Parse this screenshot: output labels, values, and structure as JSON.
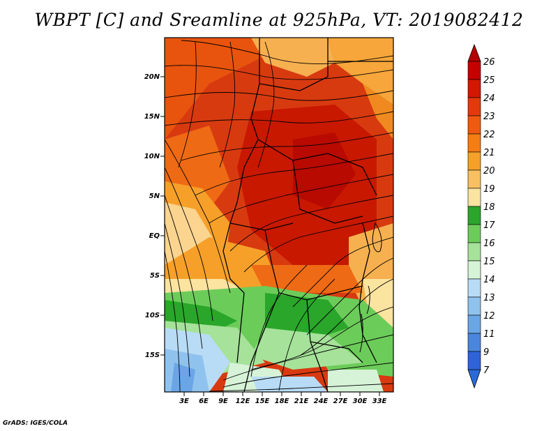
{
  "title": "WBPT [C] and Sreamline at 925hPa, VT: 2019082412",
  "credit": "GrADS: IGES/COLA",
  "map": {
    "lat_ticks": [
      "20N",
      "15N",
      "10N",
      "5N",
      "EQ",
      "5S",
      "10S",
      "15S"
    ],
    "lon_ticks": [
      "3E",
      "6E",
      "9E",
      "12E",
      "15E",
      "18E",
      "21E",
      "24E",
      "27E",
      "30E",
      "33E"
    ]
  },
  "colorbar": {
    "levels": [
      "26",
      "25",
      "24",
      "23",
      "22",
      "21",
      "20",
      "19",
      "18",
      "17",
      "16",
      "15",
      "14",
      "13",
      "12",
      "11",
      "9",
      "7"
    ],
    "colors": [
      "#c40000",
      "#d21800",
      "#e23a0a",
      "#ee5a10",
      "#f47d14",
      "#f6a02a",
      "#f8c060",
      "#fbe3a0",
      "#2aa62a",
      "#6ccc5a",
      "#a6e29a",
      "#d6f3d8",
      "#b8dcf6",
      "#90c2ee",
      "#6aa6e6",
      "#4a86de",
      "#2e64d8"
    ],
    "top_arrow_color": "#b50000",
    "bottom_arrow_color": "#2a6ad8"
  }
}
